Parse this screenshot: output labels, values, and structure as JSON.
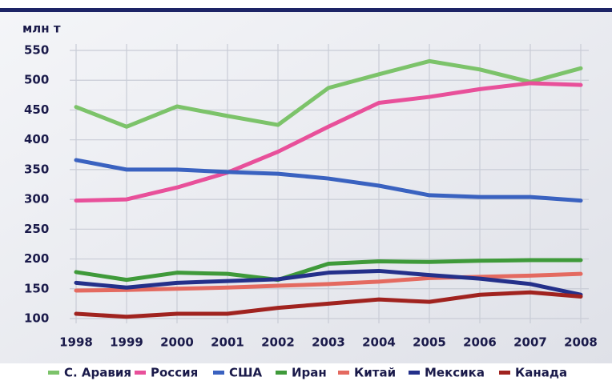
{
  "chart_data": {
    "type": "line",
    "ylabel": "млн т",
    "x": [
      1998,
      1999,
      2000,
      2001,
      2002,
      2003,
      2004,
      2005,
      2006,
      2007,
      2008
    ],
    "xlim": [
      1998,
      2008
    ],
    "xticks": [
      1998,
      1999,
      2000,
      2001,
      2002,
      2003,
      2004,
      2005,
      2006,
      2007,
      2008
    ],
    "ylim": [
      100,
      550
    ],
    "yticks": [
      100,
      150,
      200,
      250,
      300,
      350,
      400,
      450,
      500,
      550
    ],
    "grid": true,
    "legend": "bottom",
    "series": [
      {
        "name": "С. Аравия",
        "color": "#7cc36a",
        "values": [
          455,
          422,
          456,
          440,
          425,
          487,
          510,
          532,
          518,
          497,
          520
        ]
      },
      {
        "name": "Россия",
        "color": "#e8509a",
        "values": [
          298,
          300,
          320,
          345,
          380,
          422,
          462,
          472,
          485,
          495,
          492
        ]
      },
      {
        "name": "США",
        "color": "#3a62c0",
        "values": [
          366,
          350,
          350,
          346,
          343,
          335,
          323,
          307,
          304,
          304,
          298
        ]
      },
      {
        "name": "Иран",
        "color": "#3f9a3a",
        "values": [
          178,
          165,
          177,
          175,
          165,
          192,
          196,
          195,
          197,
          198,
          198
        ]
      },
      {
        "name": "Китай",
        "color": "#e46a60",
        "values": [
          147,
          148,
          150,
          152,
          155,
          158,
          162,
          168,
          170,
          172,
          175
        ]
      },
      {
        "name": "Мексика",
        "color": "#24308a",
        "values": [
          160,
          152,
          160,
          163,
          166,
          177,
          180,
          173,
          167,
          158,
          140
        ]
      },
      {
        "name": "Канада",
        "color": "#a0231f",
        "values": [
          108,
          103,
          108,
          108,
          118,
          125,
          132,
          128,
          140,
          144,
          137
        ]
      }
    ]
  }
}
